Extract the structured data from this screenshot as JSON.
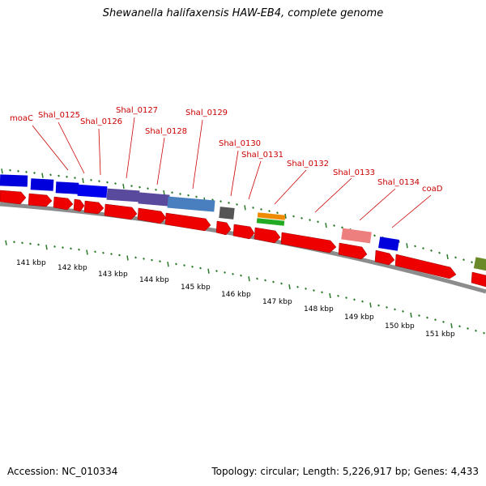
{
  "title": "Shewanella halifaxensis HAW-EB4, complete genome",
  "footer": {
    "accession": "Accession: NC_010334",
    "summary": "Topology: circular; Length: 5,226,917 bp; Genes: 4,433"
  },
  "colors": {
    "forward_cds": "#0000cc",
    "reverse_cds": "#ee0000",
    "label": "#cc0000",
    "tick": "#2a7a2a",
    "backbone": "#888888"
  },
  "gene_labels": [
    "moaC",
    "Shal_0125",
    "Shal_0126",
    "Shal_0127",
    "Shal_0128",
    "Shal_0129",
    "Shal_0130",
    "Shal_0131",
    "Shal_0132",
    "Shal_0133",
    "Shal_0134",
    "coaD"
  ],
  "scale_labels": [
    "141 kbp",
    "142 kbp",
    "143 kbp",
    "144 kbp",
    "145 kbp",
    "146 kbp",
    "147 kbp",
    "148 kbp",
    "149 kbp",
    "150 kbp",
    "151 kbp"
  ]
}
